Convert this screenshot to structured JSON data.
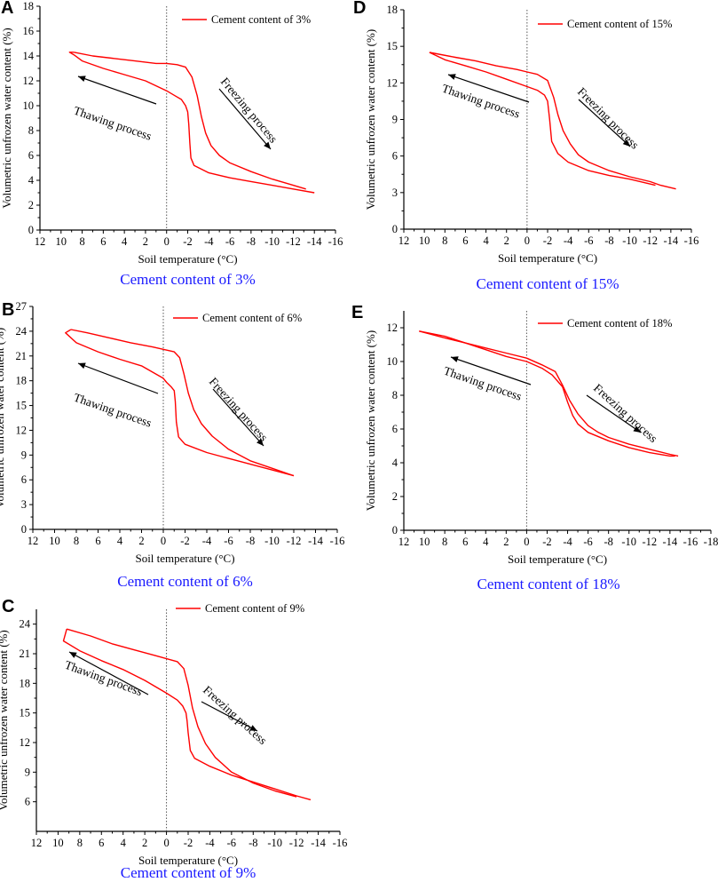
{
  "colors": {
    "series": "#ff0000",
    "caption": "#1a1aff",
    "axis": "#000000",
    "zero_line": "#555555"
  },
  "chart_data": [
    {
      "panel": "A",
      "type": "line",
      "title": "Cement content of 3%",
      "xlabel": "Soil temperature (°C)",
      "ylabel": "Volumetric unfrozen water content (%)",
      "xlim": [
        12,
        -16
      ],
      "ylim": [
        0,
        18
      ],
      "xticks": [
        12,
        10,
        8,
        6,
        4,
        2,
        0,
        -2,
        -4,
        -6,
        -8,
        -10,
        -12,
        -14,
        -16
      ],
      "yticks": [
        0,
        2,
        4,
        6,
        8,
        10,
        12,
        14,
        16,
        18
      ],
      "legend": "Cement content of 3%",
      "annotations": {
        "thawing": "Thawing process",
        "freezing": "Freezing process"
      },
      "series": [
        {
          "name": "freezing",
          "x": [
            8.8,
            7,
            5,
            3,
            1,
            0,
            -1,
            -1.8,
            -2.4,
            -2.9,
            -3.3,
            -3.7,
            -4.2,
            -5,
            -6,
            -8,
            -10,
            -12,
            -13.2
          ],
          "y": [
            14.3,
            14,
            13.8,
            13.6,
            13.4,
            13.4,
            13.3,
            13.1,
            12.3,
            10.8,
            9.1,
            7.8,
            6.8,
            6.0,
            5.4,
            4.7,
            4.1,
            3.6,
            3.3
          ]
        },
        {
          "name": "thawing",
          "x": [
            -14,
            -12,
            -10,
            -8,
            -6,
            -4,
            -2.6,
            -2.3,
            -2.2,
            -2.1,
            -2,
            -1.8,
            -1.4,
            -0.8,
            0,
            2,
            4,
            6,
            8,
            8.8,
            9.2,
            8.8
          ],
          "y": [
            3.0,
            3.3,
            3.6,
            3.9,
            4.2,
            4.6,
            5.2,
            5.8,
            7.0,
            8.5,
            9.5,
            10.0,
            10.5,
            10.8,
            11.2,
            12.0,
            12.5,
            13.0,
            13.6,
            14.1,
            14.3,
            14.3
          ]
        }
      ]
    },
    {
      "panel": "B",
      "type": "line",
      "title": "Cement content of 6%",
      "xlabel": "Soil temperature (°C)",
      "ylabel": "Volumetric unfrozen water content (%)",
      "xlim": [
        12,
        -16
      ],
      "ylim": [
        0,
        27
      ],
      "xticks": [
        12,
        10,
        8,
        6,
        4,
        2,
        0,
        -2,
        -4,
        -6,
        -8,
        -10,
        -12,
        -14,
        -16
      ],
      "yticks": [
        0,
        3,
        6,
        9,
        12,
        15,
        18,
        21,
        24,
        27
      ],
      "legend": "Cement content of 6%",
      "annotations": {
        "thawing": "Thawing process",
        "freezing": "Freezing process"
      },
      "series": [
        {
          "name": "freezing",
          "x": [
            8.5,
            7,
            5,
            3,
            1,
            0,
            -1,
            -1.5,
            -1.9,
            -2.3,
            -2.8,
            -3.5,
            -4.5,
            -6,
            -8,
            -10,
            -12
          ],
          "y": [
            24.2,
            23.8,
            23.2,
            22.6,
            22.1,
            21.8,
            21.5,
            20.8,
            18.8,
            16.5,
            14.5,
            12.8,
            11.3,
            9.7,
            8.3,
            7.4,
            6.5
          ]
        },
        {
          "name": "thawing",
          "x": [
            -12,
            -10,
            -8,
            -6,
            -4,
            -2,
            -1.4,
            -1.2,
            -1.1,
            -1,
            -0.7,
            -0.3,
            0,
            2,
            4,
            6,
            8,
            9,
            8.5
          ],
          "y": [
            6.5,
            7.2,
            7.9,
            8.6,
            9.3,
            10.3,
            11.2,
            13,
            15.5,
            16.8,
            17.3,
            17.8,
            18.3,
            19.8,
            20.6,
            21.5,
            22.6,
            23.8,
            24.2
          ]
        }
      ]
    },
    {
      "panel": "C",
      "type": "line",
      "title": "Cement content of 9%",
      "xlabel": "Soil temperature (°C)",
      "ylabel": "Volumetric unfrozen water content (%)",
      "xlim": [
        12,
        -16
      ],
      "ylim": [
        3,
        25.5
      ],
      "xticks": [
        12,
        10,
        8,
        6,
        4,
        2,
        0,
        -2,
        -4,
        -6,
        -8,
        -10,
        -12,
        -14,
        -16
      ],
      "yticks": [
        6,
        9,
        12,
        15,
        18,
        21,
        24
      ],
      "legend": "Cement content of 9%",
      "annotations": {
        "thawing": "Thawing process",
        "freezing": "Freezing process"
      },
      "series": [
        {
          "name": "freezing",
          "x": [
            9.2,
            7,
            5,
            3,
            1,
            0,
            -1,
            -1.6,
            -2,
            -2.4,
            -2.9,
            -3.6,
            -4.5,
            -6,
            -8,
            -10,
            -12
          ],
          "y": [
            23.5,
            22.8,
            22.0,
            21.4,
            20.8,
            20.5,
            20.2,
            19.5,
            17.8,
            15.5,
            13.6,
            11.9,
            10.5,
            9.0,
            7.9,
            7.1,
            6.5
          ]
        },
        {
          "name": "thawing",
          "x": [
            -13.3,
            -12,
            -10,
            -8,
            -6,
            -4,
            -2.6,
            -2.2,
            -2,
            -1.9,
            -1.8,
            -1.5,
            -1,
            0,
            2,
            4,
            6,
            8,
            9.5,
            9.2
          ],
          "y": [
            6.2,
            6.6,
            7.3,
            8.0,
            8.7,
            9.6,
            10.4,
            11.2,
            13.0,
            14.2,
            15.0,
            15.7,
            16.3,
            17.0,
            18.3,
            19.4,
            20.3,
            21.3,
            22.3,
            23.5
          ]
        }
      ]
    },
    {
      "panel": "D",
      "type": "line",
      "title": "Cement content of 15%",
      "xlabel": "Soil temperature (°C)",
      "ylabel": "Volumetric unfrozen water content (%)",
      "xlim": [
        12,
        -16
      ],
      "ylim": [
        0,
        18
      ],
      "xticks": [
        12,
        10,
        8,
        6,
        4,
        2,
        0,
        -2,
        -4,
        -6,
        -8,
        -10,
        -12,
        -14,
        -16
      ],
      "yticks": [
        0,
        3,
        6,
        9,
        12,
        15,
        18
      ],
      "legend": "Cement content of 15%",
      "annotations": {
        "thawing": "Thawing process",
        "freezing": "Freezing process"
      },
      "series": [
        {
          "name": "freezing",
          "x": [
            9.5,
            7,
            5,
            3,
            1,
            0,
            -1,
            -2,
            -2.6,
            -3,
            -3.5,
            -4.2,
            -5,
            -6,
            -8,
            -10,
            -12,
            -13,
            -14.5
          ],
          "y": [
            14.5,
            14.1,
            13.8,
            13.4,
            13.1,
            12.9,
            12.7,
            12.2,
            10.8,
            9.4,
            8.1,
            7.0,
            6.1,
            5.5,
            4.8,
            4.3,
            3.9,
            3.6,
            3.3
          ]
        },
        {
          "name": "thawing",
          "x": [
            -12.5,
            -12,
            -10,
            -8,
            -6,
            -4,
            -3,
            -2.4,
            -2.2,
            -2,
            -1.7,
            -1,
            0,
            2,
            4,
            6,
            8,
            9.5
          ],
          "y": [
            3.6,
            3.7,
            4.1,
            4.4,
            4.8,
            5.5,
            6.2,
            7.2,
            9.0,
            10.5,
            11.0,
            11.4,
            11.7,
            12.3,
            12.9,
            13.4,
            13.9,
            14.5
          ]
        }
      ]
    },
    {
      "panel": "E",
      "type": "line",
      "title": "Cement content of 18%",
      "xlabel": "Soil temperature (°C)",
      "ylabel": "Volumetric unfrozen water content (%)",
      "xlim": [
        12,
        -18
      ],
      "ylim": [
        0,
        13
      ],
      "xticks": [
        12,
        10,
        8,
        6,
        4,
        2,
        0,
        -2,
        -4,
        -6,
        -8,
        -10,
        -12,
        -14,
        -16,
        -18
      ],
      "yticks": [
        0,
        2,
        4,
        6,
        8,
        10,
        12
      ],
      "legend": "Cement content of 18%",
      "annotations": {
        "thawing": "Thawing process",
        "freezing": "Freezing process"
      },
      "series": [
        {
          "name": "freezing",
          "x": [
            10.5,
            8,
            6,
            4,
            2,
            0,
            -1.5,
            -2.8,
            -3.5,
            -4.2,
            -5,
            -6,
            -7,
            -8,
            -10,
            -12,
            -14,
            -14.8
          ],
          "y": [
            11.8,
            11.5,
            11.1,
            10.8,
            10.5,
            10.2,
            9.8,
            9.4,
            8.6,
            7.7,
            6.9,
            6.2,
            5.8,
            5.5,
            5.1,
            4.8,
            4.5,
            4.4
          ]
        },
        {
          "name": "thawing",
          "x": [
            -14.5,
            -14,
            -12,
            -10,
            -8,
            -6,
            -5,
            -4.5,
            -4,
            -3.5,
            -2.5,
            -1.5,
            0,
            2,
            4,
            6,
            8,
            10.5
          ],
          "y": [
            4.4,
            4.4,
            4.6,
            4.9,
            5.3,
            5.8,
            6.3,
            6.8,
            7.6,
            8.5,
            9.2,
            9.6,
            10.0,
            10.3,
            10.7,
            11.1,
            11.4,
            11.8
          ]
        }
      ]
    }
  ]
}
